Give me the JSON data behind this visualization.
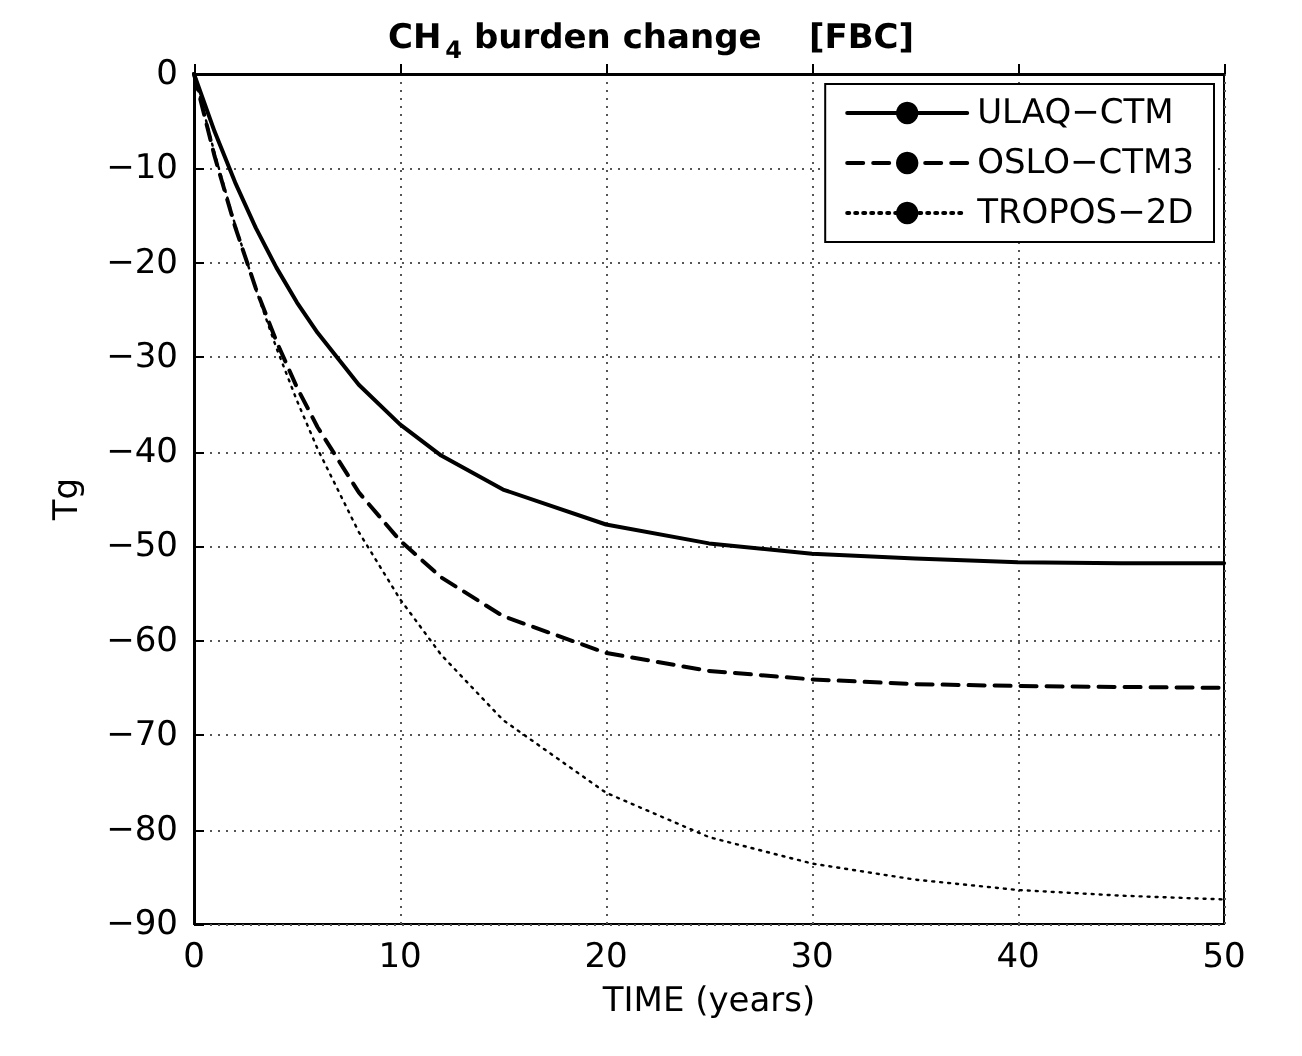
{
  "chart_data": {
    "type": "line",
    "title": "CH$_{4}$ burden change    [FBC]",
    "xlabel": "TIME (years)",
    "ylabel": "Tg",
    "x": [
      0,
      1,
      2,
      3,
      4,
      5,
      6,
      8,
      10,
      12,
      15,
      20,
      25,
      30,
      35,
      40,
      45,
      50
    ],
    "xlim": [
      0,
      50
    ],
    "xticks": [
      0,
      10,
      20,
      30,
      40,
      50
    ],
    "ylim": [
      -90,
      0
    ],
    "yticks": [
      -90,
      -80,
      -70,
      -60,
      -50,
      -40,
      -30,
      -20,
      -10,
      0
    ],
    "grid": true,
    "legend": "top right",
    "marker": "none",
    "series": [
      {
        "name": "ULAQ−CTM",
        "color": "#000000",
        "line_style": "solid",
        "values": [
          0,
          -6.1,
          -11.5,
          -16.3,
          -20.5,
          -24.2,
          -27.4,
          -32.9,
          -37.1,
          -40.4,
          -44.0,
          -47.7,
          -49.7,
          -50.8,
          -51.3,
          -51.7,
          -51.8,
          -51.8
        ]
      },
      {
        "name": "OSLO−CTM3",
        "color": "#000000",
        "line_style": "dashed",
        "values": [
          0,
          -8.7,
          -16.2,
          -22.7,
          -28.3,
          -33.2,
          -37.4,
          -44.3,
          -49.4,
          -53.3,
          -57.4,
          -61.3,
          -63.2,
          -64.1,
          -64.6,
          -64.8,
          -64.9,
          -65.0
        ]
      },
      {
        "name": "TROPOS−2D",
        "color": "#000000",
        "line_style": "dotted",
        "values": [
          0,
          -8.4,
          -16.0,
          -22.8,
          -29.0,
          -34.6,
          -39.7,
          -48.5,
          -55.6,
          -61.5,
          -68.4,
          -76.1,
          -80.8,
          -83.6,
          -85.3,
          -86.4,
          -87.0,
          -87.4
        ]
      }
    ]
  }
}
